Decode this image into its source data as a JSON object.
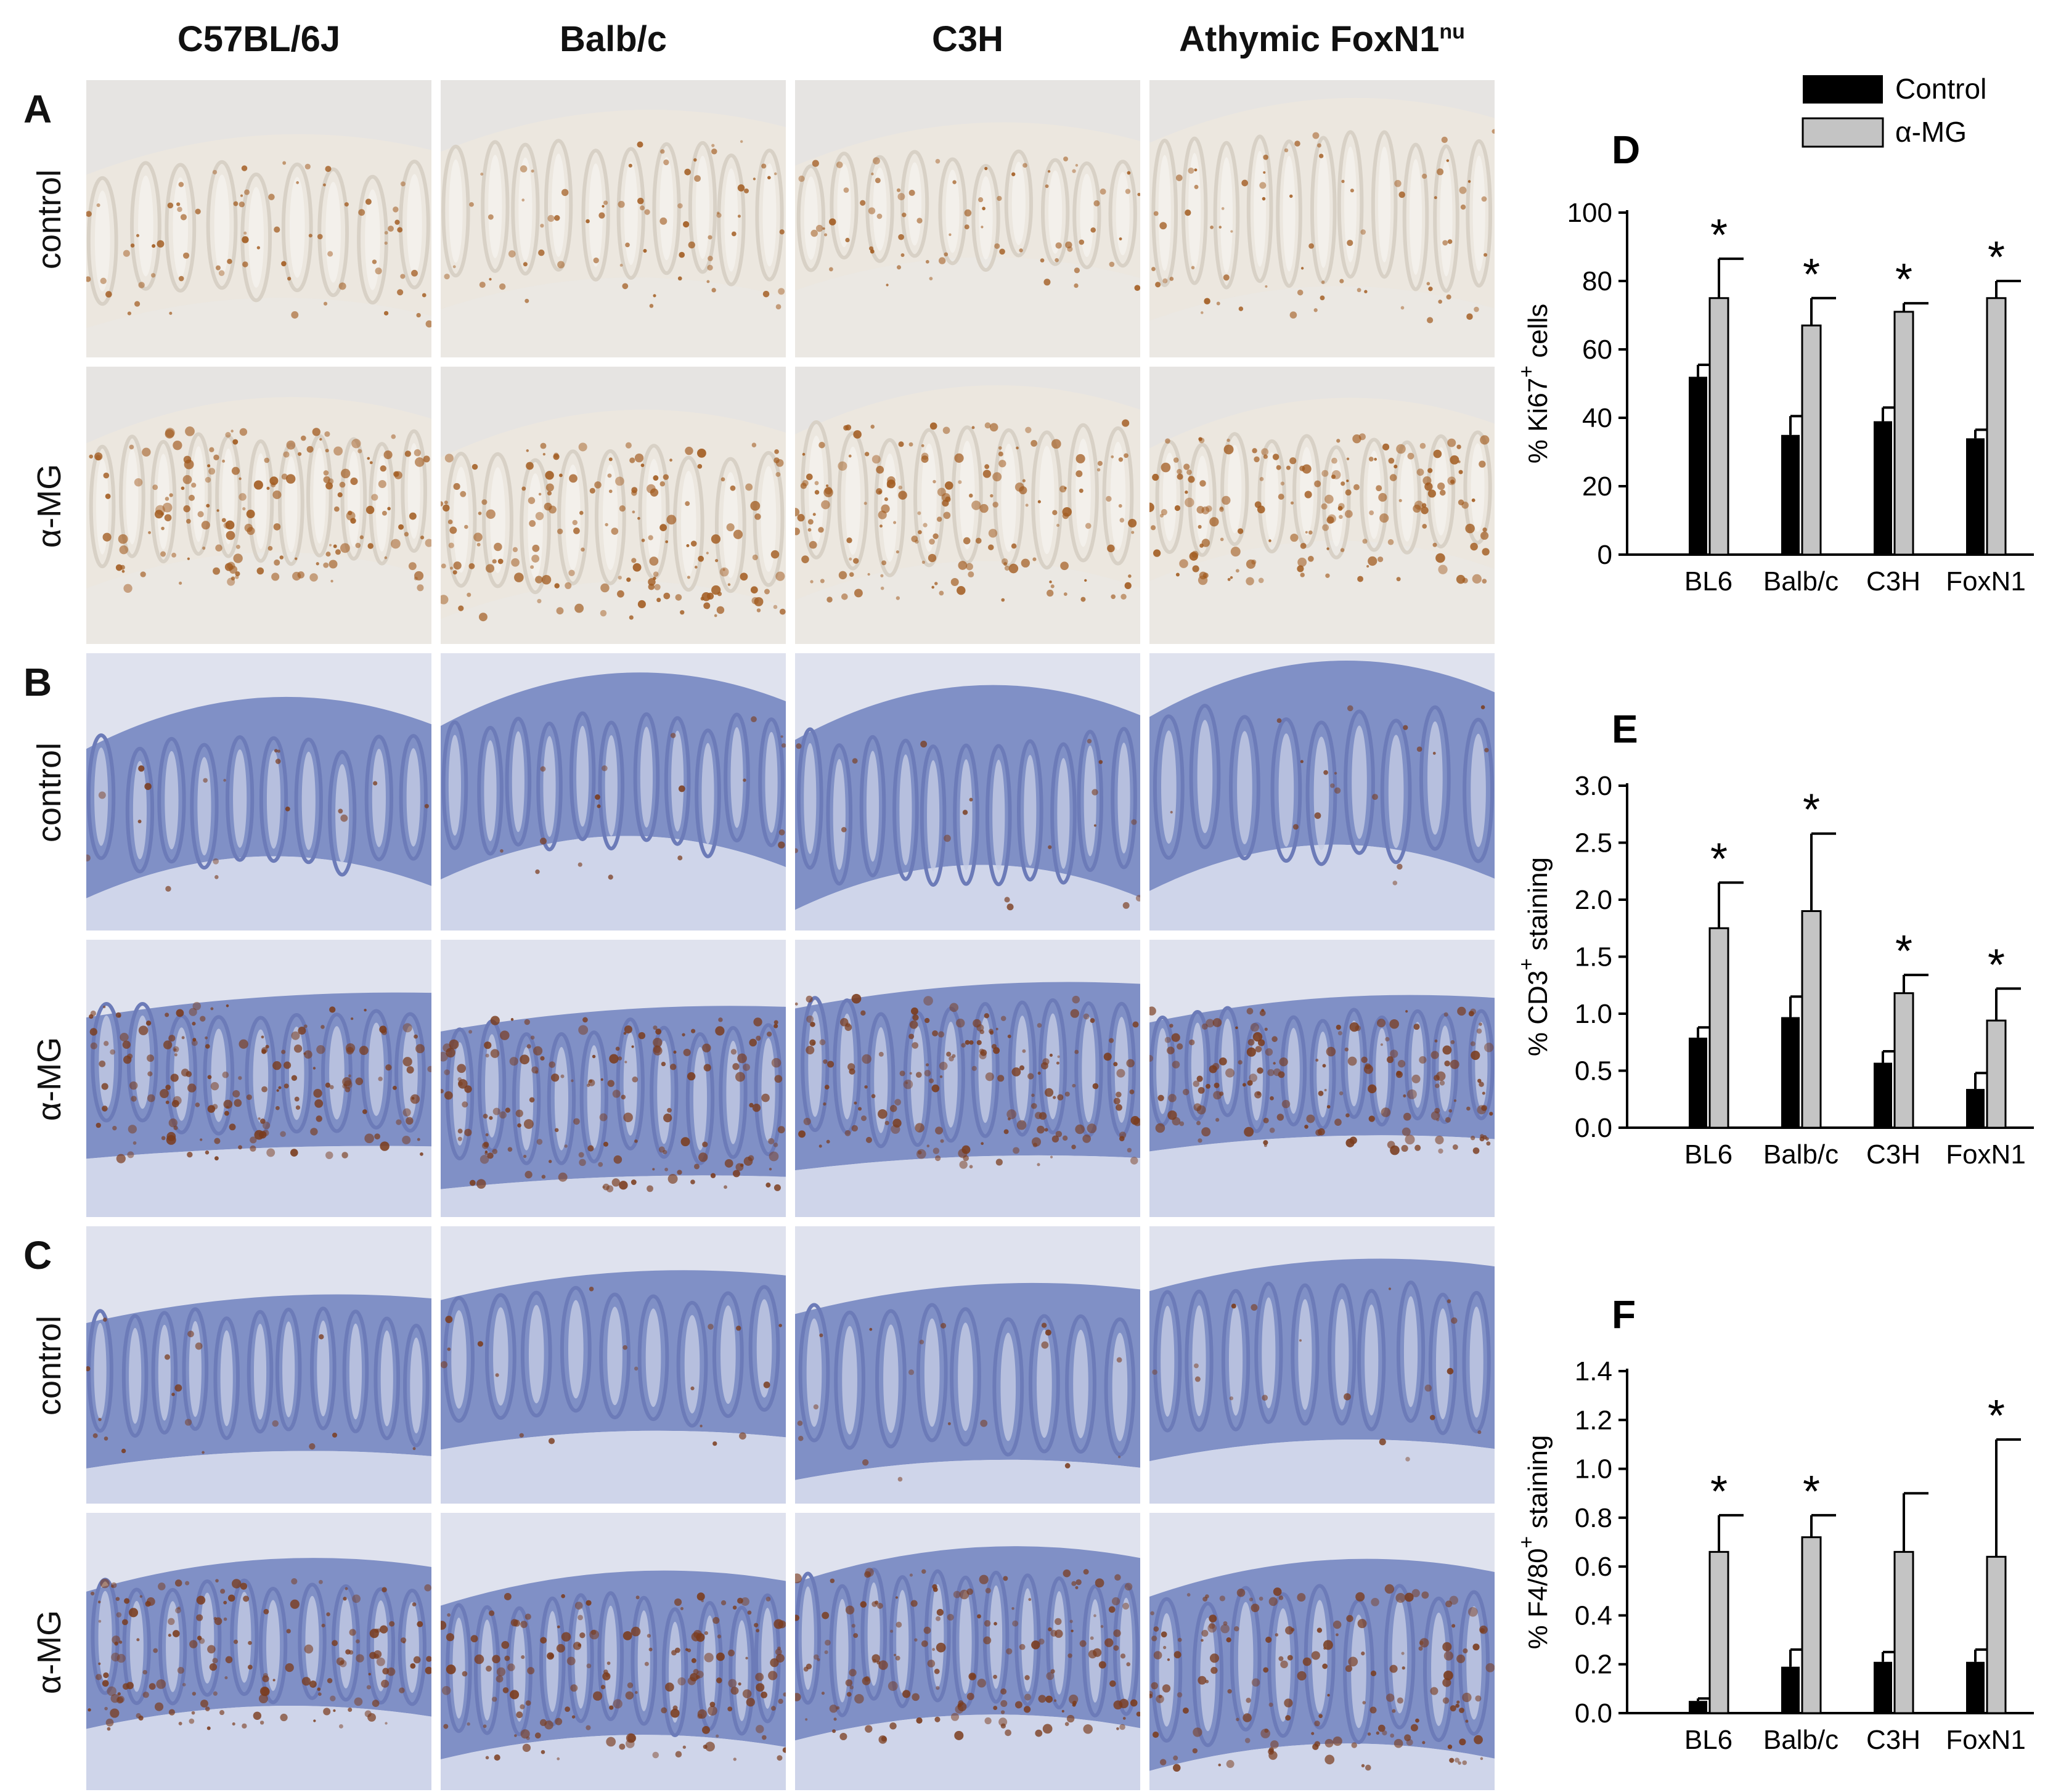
{
  "columns": [
    {
      "label": "C57BL/6J",
      "sup": ""
    },
    {
      "label": "Balb/c",
      "sup": ""
    },
    {
      "label": "C3H",
      "sup": ""
    },
    {
      "label": "Athymic FoxN1",
      "sup": "nu"
    }
  ],
  "panels": [
    {
      "letter": "A",
      "stain": "brown",
      "rows": [
        "control",
        "α-MG"
      ]
    },
    {
      "letter": "B",
      "stain": "blue",
      "rows": [
        "control",
        "α-MG"
      ]
    },
    {
      "letter": "C",
      "stain": "blue",
      "rows": [
        "control",
        "α-MG"
      ]
    }
  ],
  "colors": {
    "control_bar": "#000000",
    "amg_bar": "#c4c4c4",
    "brown_tissue": "#ece7df",
    "brown_stain": "#a15a1e",
    "blue_tissue": "#8090c6",
    "blue_stain": "#7a3b1c"
  },
  "chart_data": [
    {
      "type": "bar",
      "panel": "D",
      "ylabel": "% Ki67",
      "ylabel_sup": "+",
      "ylabel_suffix": " cells",
      "categories": [
        "BL6",
        "Balb/c",
        "C3H",
        "FoxN1"
      ],
      "ylim": [
        0,
        100
      ],
      "yticks": [
        "0",
        "20",
        "40",
        "60",
        "80",
        "100"
      ],
      "legend": {
        "position": "top-right",
        "entries": [
          "Control",
          "α-MG"
        ]
      },
      "series": [
        {
          "name": "Control",
          "values": [
            52,
            35,
            39,
            34
          ],
          "errors": [
            3.5,
            5.5,
            4,
            2.5
          ]
        },
        {
          "name": "α-MG",
          "values": [
            75,
            67,
            71,
            75
          ],
          "errors": [
            11.5,
            8,
            2.5,
            5
          ]
        }
      ],
      "significance": [
        "*",
        "*",
        "*",
        "*"
      ]
    },
    {
      "type": "bar",
      "panel": "E",
      "ylabel": "% CD3",
      "ylabel_sup": "+",
      "ylabel_suffix": " staining",
      "categories": [
        "BL6",
        "Balb/c",
        "C3H",
        "FoxN1"
      ],
      "ylim": [
        0,
        3.0
      ],
      "yticks": [
        "0.0",
        "0.5",
        "1.0",
        "1.5",
        "2.0",
        "2.5",
        "3.0"
      ],
      "series": [
        {
          "name": "Control",
          "values": [
            0.79,
            0.97,
            0.57,
            0.34
          ],
          "errors": [
            0.09,
            0.18,
            0.1,
            0.14
          ]
        },
        {
          "name": "α-MG",
          "values": [
            1.75,
            1.9,
            1.18,
            0.94
          ],
          "errors": [
            0.4,
            0.68,
            0.16,
            0.28
          ]
        }
      ],
      "significance": [
        "*",
        "*",
        "*",
        "*"
      ]
    },
    {
      "type": "bar",
      "panel": "F",
      "ylabel": "% F4/80",
      "ylabel_sup": "+",
      "ylabel_suffix": " staining",
      "categories": [
        "BL6",
        "Balb/c",
        "C3H",
        "FoxN1"
      ],
      "ylim": [
        0,
        1.4
      ],
      "yticks": [
        "0.0",
        "0.2",
        "0.4",
        "0.6",
        "0.8",
        "1.0",
        "1.2",
        "1.4"
      ],
      "series": [
        {
          "name": "Control",
          "values": [
            0.05,
            0.19,
            0.21,
            0.21
          ],
          "errors": [
            0.01,
            0.07,
            0.04,
            0.05
          ]
        },
        {
          "name": "α-MG",
          "values": [
            0.66,
            0.72,
            0.66,
            0.64
          ],
          "errors": [
            0.15,
            0.09,
            0.24,
            0.48
          ]
        }
      ],
      "significance": [
        "*",
        "*",
        "",
        "*"
      ]
    }
  ]
}
